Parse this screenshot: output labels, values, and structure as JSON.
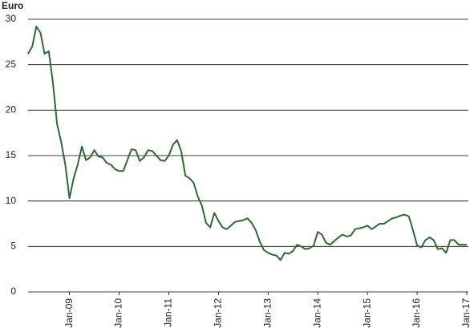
{
  "chart_data": {
    "type": "line",
    "y_label": "Euro",
    "categories": [
      null,
      null,
      null,
      null,
      null,
      null,
      null,
      null,
      null,
      null,
      "Jan-09",
      null,
      null,
      null,
      null,
      null,
      null,
      null,
      null,
      null,
      null,
      null,
      "Jan-10",
      null,
      null,
      null,
      null,
      null,
      null,
      null,
      null,
      null,
      null,
      null,
      "Jan-11",
      null,
      null,
      null,
      null,
      null,
      null,
      null,
      null,
      null,
      null,
      null,
      "Jan-12",
      null,
      null,
      null,
      null,
      null,
      null,
      null,
      null,
      null,
      null,
      null,
      "Jan-13",
      null,
      null,
      null,
      null,
      null,
      null,
      null,
      null,
      null,
      null,
      null,
      "Jan-14",
      null,
      null,
      null,
      null,
      null,
      null,
      null,
      null,
      null,
      null,
      null,
      "Jan-15",
      null,
      null,
      null,
      null,
      null,
      null,
      null,
      null,
      null,
      null,
      null,
      "Jan-16",
      null,
      null,
      null,
      null,
      null,
      null,
      null,
      null,
      null,
      null,
      null,
      "Jan-17"
    ],
    "series": [
      {
        "name": "Euro",
        "color": "#2e6b30",
        "values": [
          26.2,
          27,
          29.2,
          28.5,
          26.2,
          26.5,
          23,
          18.5,
          16.5,
          14,
          10.3,
          12.5,
          14,
          16,
          14.5,
          14.8,
          15.6,
          14.9,
          14.8,
          14.2,
          14,
          13.5,
          13.3,
          13.3,
          14.5,
          15.7,
          15.6,
          14.4,
          14.8,
          15.6,
          15.5,
          15,
          14.5,
          14.4,
          15,
          16.2,
          16.7,
          15.5,
          12.8,
          12.5,
          12,
          10.5,
          9.5,
          7.6,
          7.1,
          8.7,
          7.8,
          7.1,
          6.9,
          7.3,
          7.7,
          7.8,
          7.9,
          8.1,
          7.6,
          6.8,
          5.5,
          4.6,
          4.3,
          4.1,
          4.0,
          3.5,
          4.3,
          4.2,
          4.5,
          5.2,
          5.0,
          4.7,
          4.8,
          5.1,
          6.6,
          6.3,
          5.4,
          5.2,
          5.6,
          6.0,
          6.3,
          6.1,
          6.2,
          6.9,
          7.0,
          7.1,
          7.3,
          6.9,
          7.2,
          7.5,
          7.5,
          7.8,
          8.1,
          8.2,
          8.4,
          8.5,
          8.3,
          6.8,
          5.1,
          4.9,
          5.7,
          6.0,
          5.7,
          4.7,
          4.8,
          4.3,
          5.7,
          5.7,
          5.2,
          5.2,
          5.2
        ]
      }
    ],
    "ylim": [
      0,
      30
    ],
    "yticks": [
      0,
      5,
      10,
      15,
      20,
      25,
      30
    ],
    "grid": true
  }
}
